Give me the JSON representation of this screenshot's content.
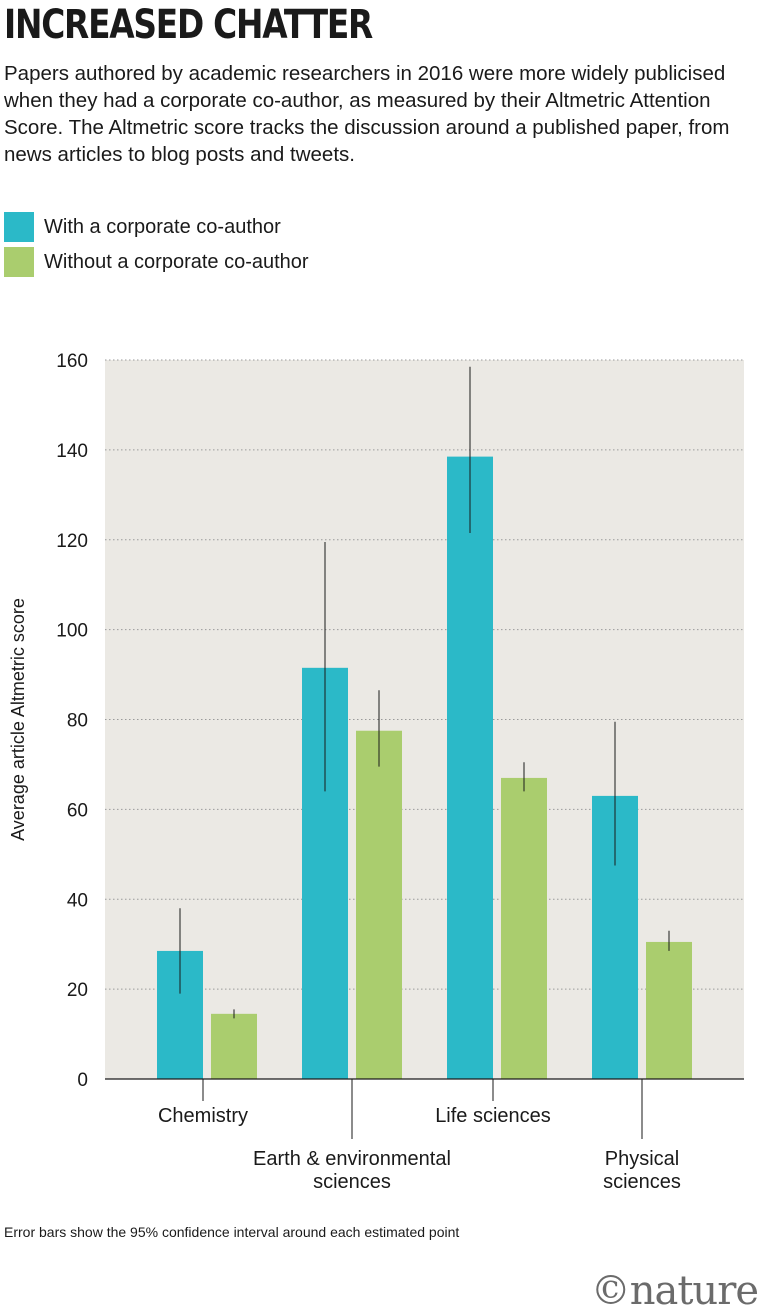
{
  "title": "INCREASED CHATTER",
  "subtitle": "Papers authored by academic researchers in 2016 were more widely publicised when they had a corporate co-author, as measured by their Altmetric Attention Score. The Altmetric score tracks the discussion around a published paper, from news articles to blog posts and tweets.",
  "footnote": "Error bars show the 95% confidence interval around each estimated point",
  "logo_text": "©nature",
  "chart_data": {
    "type": "bar",
    "categories": [
      "Chemistry",
      "Earth & environmental sciences",
      "Life sciences",
      "Physical sciences"
    ],
    "category_label_lines": [
      [
        "Chemistry"
      ],
      [
        "Earth & environmental",
        "sciences"
      ],
      [
        "Life sciences"
      ],
      [
        "Physical",
        "sciences"
      ]
    ],
    "series": [
      {
        "name": "With a corporate co-author",
        "color": "#2bb9c8",
        "values": [
          28.5,
          91.5,
          138.5,
          63
        ],
        "ci_low": [
          19,
          64,
          121.5,
          47.5
        ],
        "ci_high": [
          38,
          119.5,
          158.5,
          79.5
        ]
      },
      {
        "name": "Without a corporate co-author",
        "color": "#aacd6e",
        "values": [
          14.5,
          77.5,
          67,
          30.5
        ],
        "ci_low": [
          13.5,
          69.5,
          64,
          28.5
        ],
        "ci_high": [
          15.5,
          86.5,
          70.5,
          33
        ]
      }
    ],
    "ylabel": "Average article Altmetric score",
    "ylim": [
      0,
      160
    ],
    "yticks": [
      0,
      20,
      40,
      60,
      80,
      100,
      120,
      140,
      160
    ],
    "grid": true,
    "plot_background": "#ebe9e4",
    "legend_position": "top-left"
  }
}
